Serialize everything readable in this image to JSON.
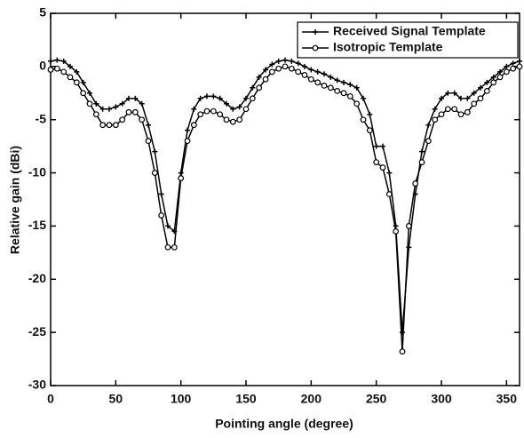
{
  "chart_data": {
    "type": "line",
    "x_label": "Pointing angle (degree)",
    "y_label": "Relative gain (dBi)",
    "x": [
      0,
      5,
      10,
      15,
      20,
      25,
      30,
      35,
      40,
      45,
      50,
      55,
      60,
      65,
      70,
      75,
      80,
      85,
      90,
      95,
      100,
      105,
      110,
      115,
      120,
      125,
      130,
      135,
      140,
      145,
      150,
      155,
      160,
      165,
      170,
      175,
      180,
      185,
      190,
      195,
      200,
      205,
      210,
      215,
      220,
      225,
      230,
      235,
      240,
      245,
      250,
      255,
      260,
      265,
      270,
      275,
      280,
      285,
      290,
      295,
      300,
      305,
      310,
      315,
      320,
      325,
      330,
      335,
      340,
      345,
      350,
      355,
      360
    ],
    "series": [
      {
        "name": "Received Signal Template",
        "color": "#000000",
        "marker": "plus",
        "values": [
          0.5,
          0.6,
          0.5,
          0,
          -0.5,
          -1.5,
          -2.5,
          -3.5,
          -4,
          -4,
          -3.8,
          -3.5,
          -3,
          -3,
          -3.5,
          -5.5,
          -8,
          -12,
          -15,
          -15.5,
          -10,
          -6,
          -4,
          -3,
          -2.8,
          -2.8,
          -3,
          -3.5,
          -4,
          -3.8,
          -3,
          -2,
          -1,
          -0.3,
          0.2,
          0.5,
          0.6,
          0.5,
          0.3,
          0,
          -0.3,
          -0.5,
          -0.7,
          -1,
          -1.3,
          -1.5,
          -1.7,
          -2,
          -3,
          -4.5,
          -7.5,
          -7.5,
          -10,
          -15,
          -25,
          -17,
          -12,
          -8,
          -5.5,
          -4,
          -3,
          -2.5,
          -2.5,
          -3,
          -3,
          -2.5,
          -2,
          -1.5,
          -1,
          -0.5,
          0,
          0.3,
          0.5
        ]
      },
      {
        "name": "Isotropic Template",
        "color": "#000000",
        "marker": "circle",
        "values": [
          -0.3,
          -0.2,
          -0.5,
          -1,
          -1.5,
          -2.5,
          -3.5,
          -4.5,
          -5.5,
          -5.5,
          -5.5,
          -5,
          -4.3,
          -4.3,
          -5,
          -7,
          -10,
          -14,
          -17,
          -17,
          -10.5,
          -7,
          -5.5,
          -4.5,
          -4.2,
          -4.2,
          -4.5,
          -5,
          -5.2,
          -5,
          -4,
          -3,
          -2,
          -1.2,
          -0.5,
          -0.2,
          0,
          -0.2,
          -0.5,
          -0.8,
          -1.2,
          -1.5,
          -1.8,
          -2,
          -2.3,
          -2.5,
          -2.8,
          -3.5,
          -5,
          -6,
          -9,
          -9.5,
          -12,
          -15.5,
          -26.8,
          -15,
          -11,
          -9,
          -7,
          -5,
          -4.5,
          -4,
          -4,
          -4.5,
          -4.3,
          -3.5,
          -3,
          -2.3,
          -1.5,
          -1,
          -0.5,
          -0.2,
          0
        ]
      }
    ],
    "xlim": [
      0,
      360
    ],
    "xticks": [
      0,
      50,
      100,
      150,
      200,
      250,
      300,
      350
    ],
    "ylim": [
      -30,
      5
    ],
    "yticks": [
      -30,
      -25,
      -20,
      -15,
      -10,
      -5,
      0,
      5
    ],
    "grid": false,
    "legend": "top-right"
  }
}
